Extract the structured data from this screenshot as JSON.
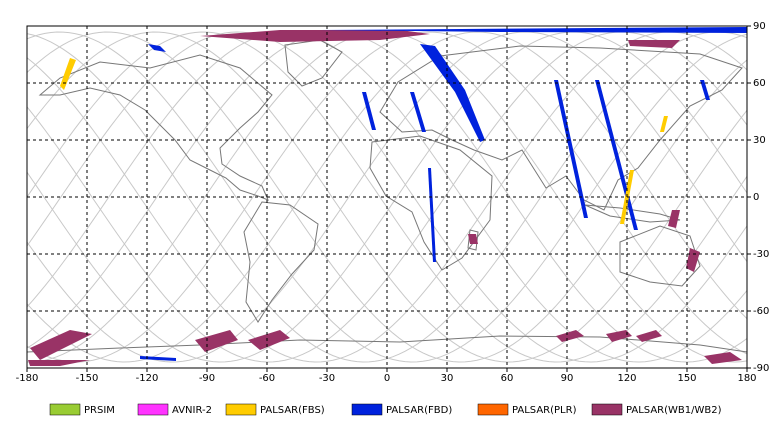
{
  "chart_data": {
    "type": "map",
    "xlim": [
      -180,
      180
    ],
    "ylim": [
      -90,
      90
    ],
    "xticks": [
      -180,
      -150,
      -120,
      -90,
      -60,
      -30,
      0,
      30,
      60,
      90,
      120,
      150,
      180
    ],
    "yticks": [
      90,
      60,
      30,
      0,
      -30,
      -60,
      -90
    ],
    "grid": true,
    "series": [
      {
        "name": "PRSIM",
        "color": "#99cc33"
      },
      {
        "name": "AVNIR-2",
        "color": "#ff33ff"
      },
      {
        "name": "PALSAR(FBS)",
        "color": "#ffcc00"
      },
      {
        "name": "PALSAR(FBD)",
        "color": "#0022dd"
      },
      {
        "name": "PALSAR(PLR)",
        "color": "#ff6600"
      },
      {
        "name": "PALSAR(WB1/WB2)",
        "color": "#993366"
      }
    ]
  }
}
